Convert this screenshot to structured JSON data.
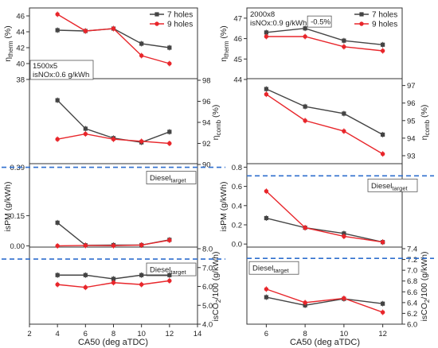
{
  "colors": {
    "seven": "#444444",
    "nine": "#e8262b",
    "target": "#2f6fce"
  },
  "chart_data": [
    {
      "id": "left",
      "type": "line",
      "x": [
        4,
        6,
        8,
        10,
        12
      ],
      "xlim": [
        2,
        14
      ],
      "xticks": [
        2,
        4,
        6,
        8,
        10,
        12,
        14
      ],
      "xlabel": "CA50 (deg aTDC)",
      "legend": [
        "7 holes",
        "9 holes"
      ],
      "panels": [
        {
          "key": "therm",
          "ylabel_main": "η",
          "ylabel_sub": "therm",
          "ylabel_unit": " (%)",
          "axis_side": "left",
          "ylim": [
            38,
            47
          ],
          "yticks": [
            38,
            40,
            42,
            44,
            46
          ],
          "series": [
            {
              "name": "7 holes",
              "values": [
                44.2,
                44.1,
                44.4,
                42.5,
                42.0
              ]
            },
            {
              "name": "9 holes",
              "values": [
                46.2,
                44.1,
                44.4,
                41.0,
                40.0
              ]
            }
          ],
          "annotations": [
            "1500x5",
            "isNOx:0.6 g/kWh"
          ]
        },
        {
          "key": "comb",
          "ylabel_main": "η",
          "ylabel_sub": "comb",
          "ylabel_unit": " (%)",
          "axis_side": "right",
          "ylim": [
            90,
            98
          ],
          "yticks": [
            90,
            92,
            94,
            96,
            98
          ],
          "series": [
            {
              "name": "7 holes",
              "values": [
                96.1,
                93.4,
                92.5,
                92.1,
                93.1
              ]
            },
            {
              "name": "9 holes",
              "values": [
                92.4,
                92.9,
                92.4,
                92.2,
                92.0
              ]
            }
          ]
        },
        {
          "key": "pm",
          "ylabel_main": "isPM (g/kWh)",
          "axis_side": "left",
          "ylim": [
            -0.01,
            0.4
          ],
          "ytick_labels": [
            "0.00",
            "0.15",
            "0.39"
          ],
          "ytick_values": [
            0.0,
            0.15,
            0.39
          ],
          "target_value": 0.39,
          "target_label_main": "Diesel",
          "target_label_sub": "target",
          "series": [
            {
              "name": "7 holes",
              "values": [
                0.115,
                0.003,
                0.004,
                0.004,
                0.03
              ]
            },
            {
              "name": "9 holes",
              "values": [
                0.0,
                0.002,
                0.001,
                0.004,
                0.028
              ]
            }
          ]
        },
        {
          "key": "co2",
          "ylabel_main": "isCO",
          "ylabel_sub": "2",
          "ylabel_unit": "/100 (g/kWh)",
          "axis_side": "right",
          "ylim": [
            4,
            8
          ],
          "yticks": [
            4,
            5,
            6,
            7,
            8
          ],
          "target_value": 7.45,
          "target_label_main": "Diesel",
          "target_label_sub": "target",
          "series": [
            {
              "name": "7 holes",
              "values": [
                6.6,
                6.6,
                6.4,
                6.6,
                6.6
              ]
            },
            {
              "name": "9 holes",
              "values": [
                6.1,
                5.95,
                6.2,
                6.1,
                6.3
              ]
            }
          ]
        }
      ]
    },
    {
      "id": "right",
      "type": "line",
      "x": [
        6,
        8,
        10,
        12
      ],
      "xlim": [
        5,
        13
      ],
      "xticks": [
        6,
        8,
        10,
        12
      ],
      "xlabel": "CA50 (deg aTDC)",
      "legend": [
        "7 holes",
        "9 holes"
      ],
      "panels": [
        {
          "key": "therm",
          "ylabel_main": "η",
          "ylabel_sub": "therm",
          "ylabel_unit": " (%)",
          "axis_side": "left",
          "ylim": [
            44,
            47.5
          ],
          "yticks": [
            44,
            45,
            46,
            47
          ],
          "series": [
            {
              "name": "7 holes",
              "values": [
                46.3,
                46.5,
                45.9,
                45.7
              ]
            },
            {
              "name": "9 holes",
              "values": [
                46.1,
                46.1,
                45.6,
                45.4
              ]
            }
          ],
          "annotations": [
            "2000x8",
            "isNOx:0.9 g/kWh"
          ],
          "callout": "-0.5%"
        },
        {
          "key": "comb",
          "ylabel_main": "η",
          "ylabel_sub": "comb",
          "ylabel_unit": " (%)",
          "axis_side": "right",
          "ylim": [
            92.5,
            97.3
          ],
          "yticks": [
            93,
            94,
            95,
            96,
            97
          ],
          "series": [
            {
              "name": "7 holes",
              "values": [
                96.8,
                95.8,
                95.4,
                94.2
              ]
            },
            {
              "name": "9 holes",
              "values": [
                96.5,
                95.0,
                94.4,
                93.1
              ]
            }
          ]
        },
        {
          "key": "pm",
          "ylabel_main": "isPM (g/kWh)",
          "axis_side": "left",
          "ylim": [
            -0.04,
            0.82
          ],
          "yticks": [
            0.0,
            0.2,
            0.4,
            0.6,
            0.8
          ],
          "target_value": 0.71,
          "target_label_main": "Diesel",
          "target_label_sub": "target",
          "series": [
            {
              "name": "7 holes",
              "values": [
                0.27,
                0.17,
                0.11,
                0.02
              ]
            },
            {
              "name": "9 holes",
              "values": [
                0.55,
                0.17,
                0.08,
                0.02
              ]
            }
          ]
        },
        {
          "key": "co2",
          "ylabel_main": "isCO",
          "ylabel_sub": "2",
          "ylabel_unit": "/100 (g/kWh)",
          "axis_side": "right",
          "ylim": [
            6.0,
            7.4
          ],
          "yticks": [
            6.0,
            6.2,
            6.4,
            6.6,
            6.8,
            7.0,
            7.2,
            7.4
          ],
          "target_value": 7.22,
          "target_label_main": "Diesel",
          "target_label_sub": "target",
          "series": [
            {
              "name": "7 holes",
              "values": [
                6.5,
                6.35,
                6.47,
                6.38
              ]
            },
            {
              "name": "9 holes",
              "values": [
                6.65,
                6.4,
                6.48,
                6.22
              ]
            }
          ]
        }
      ]
    }
  ]
}
